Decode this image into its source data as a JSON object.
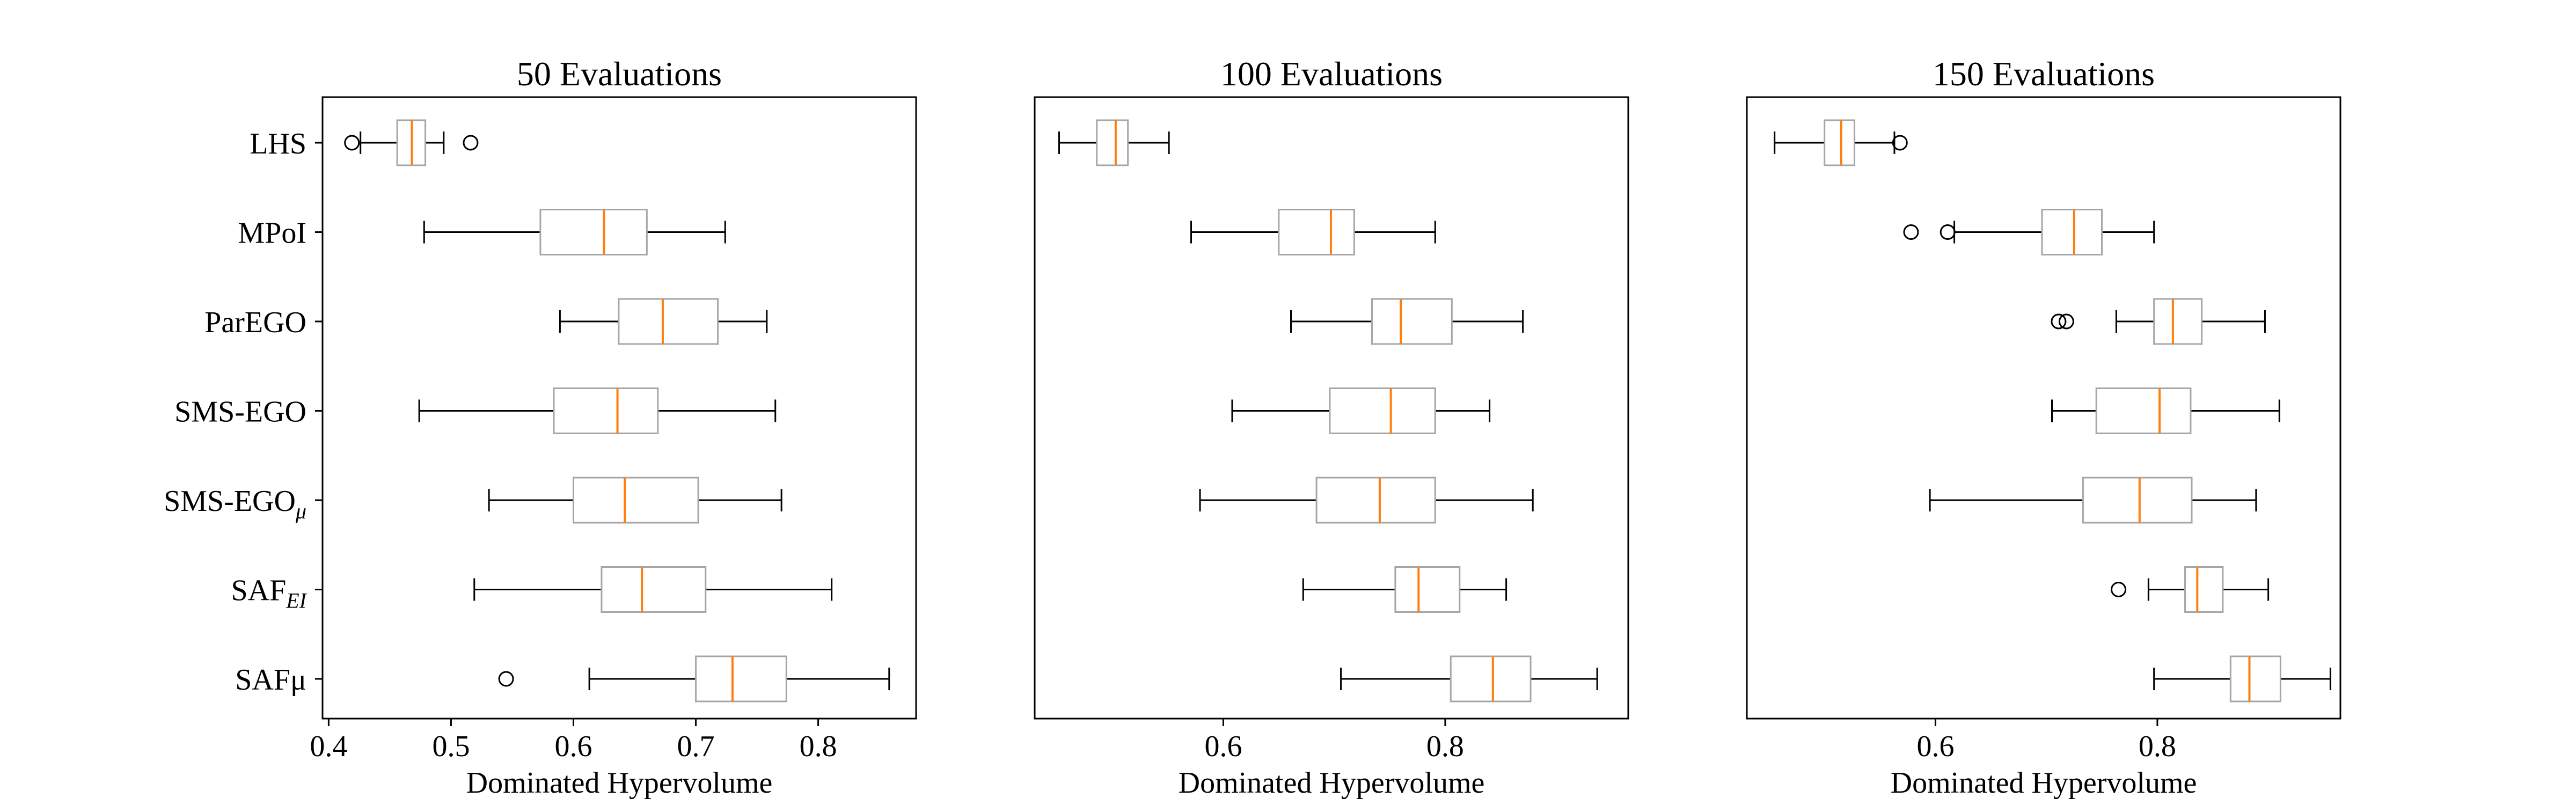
{
  "chart_data": [
    {
      "type": "boxplot",
      "title": "50 Evaluations",
      "xlabel": "Dominated Hypervolume",
      "xlim": [
        0.395,
        0.88
      ],
      "xticks": [
        0.4,
        0.5,
        0.6,
        0.7,
        0.8
      ],
      "xtick_labels": [
        "0.4",
        "0.5",
        "0.6",
        "0.7",
        "0.8"
      ],
      "categories": [
        "LHS",
        "MPoI",
        "ParEGO",
        "SMS-EGO",
        "SMS-EGO_μ",
        "SAF_EI",
        "SAFμ"
      ],
      "boxes": [
        {
          "whisker_low": 0.426,
          "q1": 0.456,
          "median": 0.468,
          "q3": 0.479,
          "whisker_high": 0.494,
          "outliers": [
            0.419,
            0.516
          ]
        },
        {
          "whisker_low": 0.478,
          "q1": 0.573,
          "median": 0.625,
          "q3": 0.66,
          "whisker_high": 0.724,
          "outliers": []
        },
        {
          "whisker_low": 0.589,
          "q1": 0.637,
          "median": 0.673,
          "q3": 0.718,
          "whisker_high": 0.758,
          "outliers": []
        },
        {
          "whisker_low": 0.474,
          "q1": 0.584,
          "median": 0.636,
          "q3": 0.669,
          "whisker_high": 0.765,
          "outliers": []
        },
        {
          "whisker_low": 0.531,
          "q1": 0.6,
          "median": 0.642,
          "q3": 0.702,
          "whisker_high": 0.77,
          "outliers": []
        },
        {
          "whisker_low": 0.519,
          "q1": 0.623,
          "median": 0.656,
          "q3": 0.708,
          "whisker_high": 0.811,
          "outliers": []
        },
        {
          "whisker_low": 0.613,
          "q1": 0.7,
          "median": 0.73,
          "q3": 0.774,
          "whisker_high": 0.858,
          "outliers": [
            0.545
          ]
        }
      ]
    },
    {
      "type": "boxplot",
      "title": "100 Evaluations",
      "xlabel": "Dominated Hypervolume",
      "xlim": [
        0.43,
        0.965
      ],
      "xticks": [
        0.6,
        0.8
      ],
      "xtick_labels": [
        "0.6",
        "0.8"
      ],
      "categories": [
        "LHS",
        "MPoI",
        "ParEGO",
        "SMS-EGO",
        "SMS-EGO_μ",
        "SAF_EI",
        "SAFμ"
      ],
      "boxes": [
        {
          "whisker_low": 0.452,
          "q1": 0.486,
          "median": 0.503,
          "q3": 0.514,
          "whisker_high": 0.551,
          "outliers": []
        },
        {
          "whisker_low": 0.571,
          "q1": 0.65,
          "median": 0.697,
          "q3": 0.718,
          "whisker_high": 0.791,
          "outliers": []
        },
        {
          "whisker_low": 0.661,
          "q1": 0.734,
          "median": 0.76,
          "q3": 0.806,
          "whisker_high": 0.87,
          "outliers": []
        },
        {
          "whisker_low": 0.608,
          "q1": 0.696,
          "median": 0.751,
          "q3": 0.791,
          "whisker_high": 0.84,
          "outliers": []
        },
        {
          "whisker_low": 0.579,
          "q1": 0.684,
          "median": 0.741,
          "q3": 0.791,
          "whisker_high": 0.879,
          "outliers": []
        },
        {
          "whisker_low": 0.672,
          "q1": 0.755,
          "median": 0.776,
          "q3": 0.813,
          "whisker_high": 0.855,
          "outliers": []
        },
        {
          "whisker_low": 0.706,
          "q1": 0.805,
          "median": 0.843,
          "q3": 0.877,
          "whisker_high": 0.937,
          "outliers": []
        }
      ]
    },
    {
      "type": "boxplot",
      "title": "150 Evaluations",
      "xlabel": "Dominated Hypervolume",
      "xlim": [
        0.43,
        0.965
      ],
      "xticks": [
        0.6,
        0.8
      ],
      "xtick_labels": [
        "0.6",
        "0.8"
      ],
      "categories": [
        "LHS",
        "MPoI",
        "ParEGO",
        "SMS-EGO",
        "SMS-EGO_μ",
        "SAF_EI",
        "SAFμ"
      ],
      "boxes": [
        {
          "whisker_low": 0.455,
          "q1": 0.5,
          "median": 0.515,
          "q3": 0.527,
          "whisker_high": 0.563,
          "outliers": [
            0.568
          ]
        },
        {
          "whisker_low": 0.617,
          "q1": 0.696,
          "median": 0.725,
          "q3": 0.75,
          "whisker_high": 0.797,
          "outliers": [
            0.578,
            0.611
          ]
        },
        {
          "whisker_low": 0.763,
          "q1": 0.797,
          "median": 0.814,
          "q3": 0.84,
          "whisker_high": 0.897,
          "outliers": [
            0.711,
            0.718
          ]
        },
        {
          "whisker_low": 0.705,
          "q1": 0.745,
          "median": 0.802,
          "q3": 0.83,
          "whisker_high": 0.91,
          "outliers": []
        },
        {
          "whisker_low": 0.595,
          "q1": 0.733,
          "median": 0.784,
          "q3": 0.831,
          "whisker_high": 0.889,
          "outliers": []
        },
        {
          "whisker_low": 0.792,
          "q1": 0.825,
          "median": 0.836,
          "q3": 0.859,
          "whisker_high": 0.9,
          "outliers": [
            0.765
          ]
        },
        {
          "whisker_low": 0.797,
          "q1": 0.866,
          "median": 0.883,
          "q3": 0.911,
          "whisker_high": 0.956,
          "outliers": []
        }
      ]
    }
  ],
  "category_labels": [
    {
      "text": "LHS",
      "sub": ""
    },
    {
      "text": "MPoI",
      "sub": ""
    },
    {
      "text": "ParEGO",
      "sub": ""
    },
    {
      "text": "SMS-EGO",
      "sub": ""
    },
    {
      "text": "SMS-EGO",
      "sub": "μ"
    },
    {
      "text": "SAF",
      "sub": "EI"
    },
    {
      "text": "SAFμ",
      "sub": ""
    }
  ],
  "colors": {
    "box": "#a6a6a6",
    "median": "#ff7f0e",
    "whisker": "#000000",
    "axes": "#000000",
    "flier": "#000000"
  }
}
